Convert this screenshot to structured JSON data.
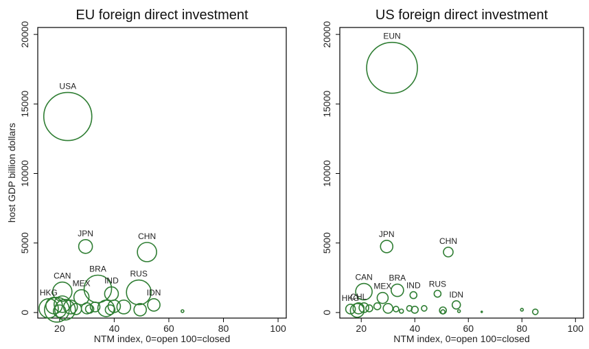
{
  "chart_data": [
    {
      "type": "scatter",
      "title": "EU foreign direct investment",
      "xlabel": "NTM index, 0=open 100=closed",
      "ylabel": "host GDP billion dollars",
      "xlim": [
        12,
        103
      ],
      "ylim": [
        -400,
        20500
      ],
      "xticks": [
        20,
        40,
        60,
        80,
        100
      ],
      "yticks": [
        0,
        5000,
        10000,
        15000,
        20000
      ],
      "bubble_color": "#2e7d32",
      "points": [
        {
          "label": "USA",
          "x": 23,
          "y": 14100,
          "r": 35
        },
        {
          "label": "JPN",
          "x": 29.5,
          "y": 4750,
          "r": 10
        },
        {
          "label": "CHN",
          "x": 52,
          "y": 4350,
          "r": 14
        },
        {
          "label": "CAN",
          "x": 21,
          "y": 1500,
          "r": 14
        },
        {
          "label": "BRA",
          "x": 34,
          "y": 1700,
          "r": 20
        },
        {
          "label": "MEX",
          "x": 28,
          "y": 1100,
          "r": 11
        },
        {
          "label": "IND",
          "x": 39,
          "y": 1350,
          "r": 10
        },
        {
          "label": "RUS",
          "x": 49,
          "y": 1450,
          "r": 18
        },
        {
          "label": "IDN",
          "x": 54.5,
          "y": 550,
          "r": 9
        },
        {
          "label": "HKG",
          "x": 16,
          "y": 300,
          "r": 14
        },
        {
          "label": "",
          "x": 18,
          "y": 500,
          "r": 12
        },
        {
          "label": "",
          "x": 19,
          "y": 200,
          "r": 18
        },
        {
          "label": "",
          "x": 21,
          "y": 600,
          "r": 12
        },
        {
          "label": "",
          "x": 22,
          "y": 200,
          "r": 15
        },
        {
          "label": "",
          "x": 20,
          "y": 100,
          "r": 9
        },
        {
          "label": "",
          "x": 24,
          "y": 400,
          "r": 10
        },
        {
          "label": "",
          "x": 26,
          "y": 250,
          "r": 8
        },
        {
          "label": "",
          "x": 30,
          "y": 300,
          "r": 8
        },
        {
          "label": "",
          "x": 31,
          "y": 250,
          "r": 6
        },
        {
          "label": "",
          "x": 33,
          "y": 400,
          "r": 7
        },
        {
          "label": "",
          "x": 37,
          "y": 300,
          "r": 12
        },
        {
          "label": "",
          "x": 38.5,
          "y": 200,
          "r": 7
        },
        {
          "label": "",
          "x": 40,
          "y": 450,
          "r": 9
        },
        {
          "label": "",
          "x": 43.5,
          "y": 400,
          "r": 10
        },
        {
          "label": "",
          "x": 49.5,
          "y": 200,
          "r": 9
        },
        {
          "label": "",
          "x": 65,
          "y": 100,
          "r": 2
        }
      ]
    },
    {
      "type": "scatter",
      "title": "US foreign direct investment",
      "xlabel": "NTM index, 0=open 100=closed",
      "ylabel": "",
      "xlim": [
        12,
        103
      ],
      "ylim": [
        -400,
        20500
      ],
      "xticks": [
        20,
        40,
        60,
        80,
        100
      ],
      "yticks": [
        0,
        5000,
        10000,
        15000,
        20000
      ],
      "bubble_color": "#2e7d32",
      "points": [
        {
          "label": "EUN",
          "x": 31.5,
          "y": 17600,
          "r": 37
        },
        {
          "label": "JPN",
          "x": 29.5,
          "y": 4750,
          "r": 9
        },
        {
          "label": "CHN",
          "x": 52.5,
          "y": 4350,
          "r": 7
        },
        {
          "label": "CAN",
          "x": 21,
          "y": 1500,
          "r": 12
        },
        {
          "label": "BRA",
          "x": 33.5,
          "y": 1600,
          "r": 9
        },
        {
          "label": "MEX",
          "x": 28,
          "y": 1050,
          "r": 8
        },
        {
          "label": "IND",
          "x": 39.5,
          "y": 1250,
          "r": 5
        },
        {
          "label": "RUS",
          "x": 48.5,
          "y": 1350,
          "r": 5
        },
        {
          "label": "IDN",
          "x": 55.5,
          "y": 550,
          "r": 6
        },
        {
          "label": "HKG",
          "x": 16,
          "y": 250,
          "r": 7
        },
        {
          "label": "CHL",
          "x": 19,
          "y": 300,
          "r": 8
        },
        {
          "label": "",
          "x": 18.5,
          "y": 150,
          "r": 10
        },
        {
          "label": "",
          "x": 21,
          "y": 350,
          "r": 7
        },
        {
          "label": "",
          "x": 23,
          "y": 300,
          "r": 5
        },
        {
          "label": "",
          "x": 26,
          "y": 450,
          "r": 5
        },
        {
          "label": "",
          "x": 30,
          "y": 300,
          "r": 7
        },
        {
          "label": "",
          "x": 33,
          "y": 250,
          "r": 4
        },
        {
          "label": "",
          "x": 35,
          "y": 100,
          "r": 3
        },
        {
          "label": "",
          "x": 38,
          "y": 300,
          "r": 4
        },
        {
          "label": "",
          "x": 40,
          "y": 200,
          "r": 5
        },
        {
          "label": "",
          "x": 43.5,
          "y": 300,
          "r": 4
        },
        {
          "label": "",
          "x": 50.5,
          "y": 150,
          "r": 5
        },
        {
          "label": "",
          "x": 50.5,
          "y": 50,
          "r": 3
        },
        {
          "label": "",
          "x": 56.5,
          "y": 100,
          "r": 2
        },
        {
          "label": "",
          "x": 65,
          "y": 50,
          "r": 1
        },
        {
          "label": "",
          "x": 80,
          "y": 200,
          "r": 2
        },
        {
          "label": "",
          "x": 85,
          "y": 50,
          "r": 4
        }
      ]
    }
  ]
}
